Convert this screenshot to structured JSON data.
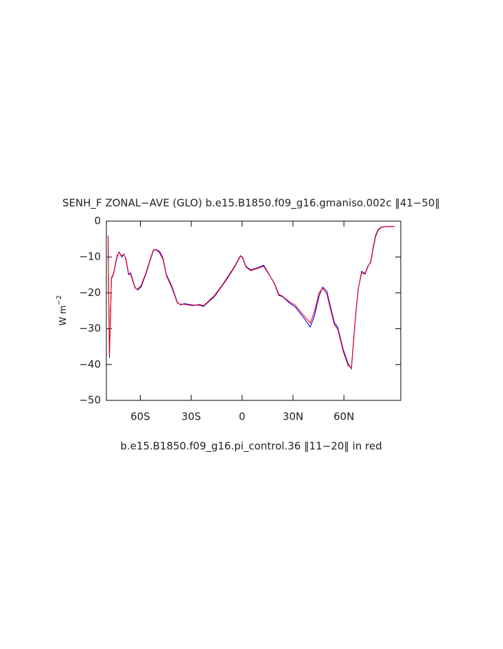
{
  "chart_data": {
    "type": "line",
    "title": "SENH_F ZONAL−AVE (GLO) b.e15.B1850.f09_g16.gmaniso.002c ‖41−50‖",
    "subtitle": "b.e15.B1850.f09_g16.pi_control.36 ‖11−20‖ in red",
    "ylabel": "W m",
    "ylabel_exponent": "−2",
    "x": [
      -79.0,
      -78.2,
      -77.0,
      -75.8,
      -73.7,
      -72.5,
      -70.9,
      -69.7,
      -68.5,
      -66.9,
      -65.7,
      -63.2,
      -61.6,
      -59.6,
      -56.8,
      -54.3,
      -52.3,
      -50.7,
      -48.7,
      -46.7,
      -44.6,
      -41.4,
      -38.2,
      -36.2,
      -34.1,
      -29.3,
      -25.3,
      -22.8,
      -20.0,
      -16.4,
      -12.3,
      -8.3,
      -4.2,
      -1.0,
      0.2,
      2.2,
      5.1,
      9.1,
      12.7,
      16.0,
      19.2,
      21.6,
      24.0,
      28.1,
      31.3,
      35.4,
      40.2,
      42.6,
      45.5,
      47.5,
      49.9,
      52.3,
      54.3,
      56.4,
      59.6,
      62.4,
      64.4,
      66.9,
      68.5,
      70.5,
      72.5,
      74.1,
      75.8,
      77.0,
      78.6,
      80.2,
      82.2,
      85.1,
      89.9
    ],
    "series": [
      {
        "name": "b.e15.B1850.f09_g16.gmaniso.002c",
        "color": "#0000ff",
        "values": [
          -4.4,
          -38.1,
          -16.1,
          -14.8,
          -10.0,
          -8.6,
          -10.0,
          -9.2,
          -10.7,
          -14.9,
          -14.4,
          -18.4,
          -19.2,
          -18.4,
          -14.9,
          -11.1,
          -8.2,
          -7.9,
          -8.4,
          -10.2,
          -14.9,
          -18.2,
          -22.6,
          -23.4,
          -23.0,
          -23.4,
          -23.4,
          -23.8,
          -22.6,
          -21.1,
          -18.4,
          -15.7,
          -12.6,
          -9.8,
          -10.0,
          -12.6,
          -13.6,
          -13.0,
          -12.3,
          -14.9,
          -17.6,
          -20.7,
          -21.1,
          -22.9,
          -23.9,
          -26.4,
          -29.5,
          -26.4,
          -20.7,
          -18.4,
          -19.5,
          -24.3,
          -28.2,
          -29.7,
          -35.8,
          -39.7,
          -41.2,
          -26.4,
          -18.8,
          -14.0,
          -14.6,
          -12.6,
          -11.5,
          -8.2,
          -4.4,
          -2.5,
          -1.7,
          -1.5,
          -1.5
        ]
      },
      {
        "name": "b.e15.B1850.f09_g16.pi_control.36",
        "color": "#ff0000",
        "values": [
          -4.0,
          -37.6,
          -15.8,
          -14.6,
          -9.6,
          -8.8,
          -9.6,
          -9.4,
          -10.4,
          -14.6,
          -14.8,
          -18.6,
          -19.0,
          -18.0,
          -14.6,
          -10.8,
          -8.0,
          -8.0,
          -8.8,
          -10.6,
          -15.2,
          -18.6,
          -22.8,
          -23.2,
          -23.2,
          -23.6,
          -23.2,
          -23.6,
          -22.4,
          -20.8,
          -18.2,
          -15.4,
          -12.4,
          -9.6,
          -10.2,
          -12.8,
          -13.8,
          -13.2,
          -12.6,
          -15.0,
          -17.4,
          -20.4,
          -21.0,
          -22.6,
          -23.4,
          -25.8,
          -28.4,
          -25.2,
          -19.8,
          -18.8,
          -20.2,
          -25.0,
          -28.8,
          -30.2,
          -36.4,
          -40.2,
          -41.0,
          -26.0,
          -18.6,
          -14.4,
          -14.8,
          -12.8,
          -11.2,
          -7.8,
          -4.0,
          -2.3,
          -1.6,
          -1.5,
          -1.5
        ]
      }
    ],
    "xlim": [
      -80,
      93.5
    ],
    "xticks": [
      {
        "value": -60,
        "label": "60S"
      },
      {
        "value": -30,
        "label": "30S"
      },
      0,
      {
        "value": 30,
        "label": "30N"
      },
      {
        "value": 60,
        "label": "60N"
      }
    ],
    "ylim": [
      -50,
      0
    ],
    "yticks": [
      {
        "value": 0,
        "label": "0"
      },
      {
        "value": -10,
        "label": "−10"
      },
      {
        "value": -20,
        "label": "−20"
      },
      {
        "value": -30,
        "label": "−30"
      },
      {
        "value": -40,
        "label": "−40"
      },
      {
        "value": -50,
        "label": "−50"
      }
    ]
  }
}
